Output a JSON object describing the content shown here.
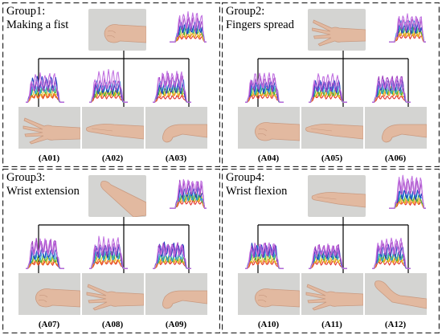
{
  "groups": [
    {
      "title_line1": "Group1:",
      "title_line2": "Making a fist",
      "gestures": [
        {
          "label": "(A01)"
        },
        {
          "label": "(A02)"
        },
        {
          "label": "(A03)"
        }
      ]
    },
    {
      "title_line1": "Group2:",
      "title_line2": "Fingers spread",
      "gestures": [
        {
          "label": "(A04)"
        },
        {
          "label": "(A05)"
        },
        {
          "label": "(A06)"
        }
      ]
    },
    {
      "title_line1": "Group3:",
      "title_line2": "Wrist extension",
      "gestures": [
        {
          "label": "(A07)"
        },
        {
          "label": "(A08)"
        },
        {
          "label": "(A09)"
        }
      ]
    },
    {
      "title_line1": "Group4:",
      "title_line2": "Wrist flexion",
      "gestures": [
        {
          "label": "(A10)"
        },
        {
          "label": "(A11)"
        },
        {
          "label": "(A12)"
        }
      ]
    }
  ],
  "colors": {
    "border": "#222222",
    "arrow": "#000000",
    "skin": "#e2b9a0",
    "skin_shadow": "#c99a80",
    "photo_bg": "#d4d4d2",
    "signal_series": [
      "#e03030",
      "#f08020",
      "#e0c020",
      "#40b040",
      "#30a0e0",
      "#2040c0",
      "#a040c0",
      "#c070e0"
    ]
  }
}
